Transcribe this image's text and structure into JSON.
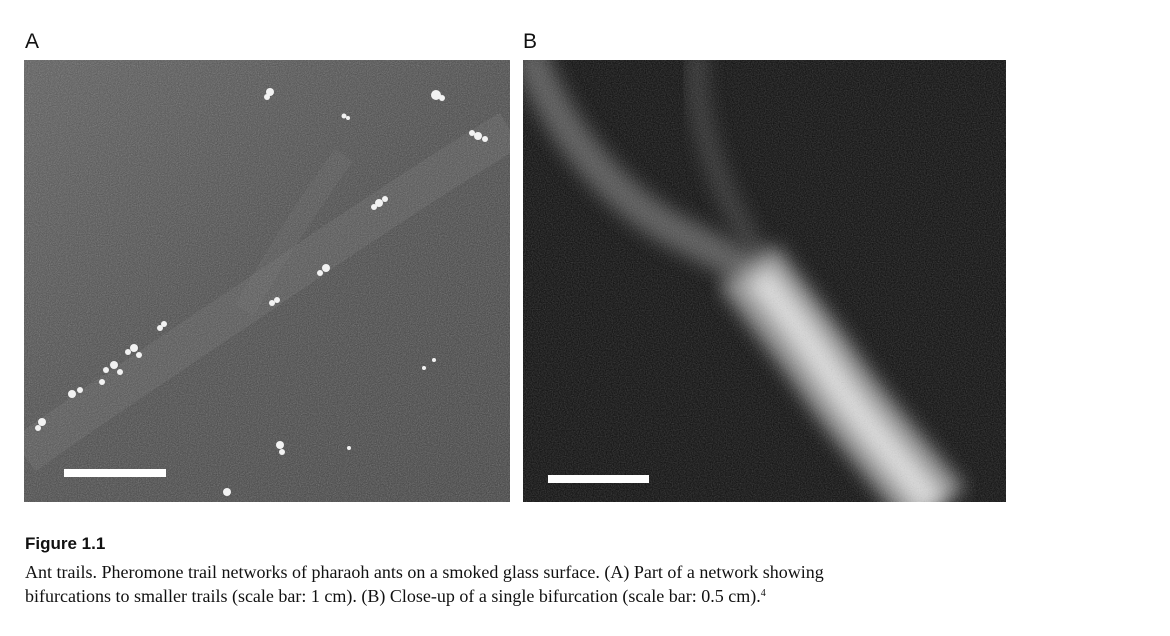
{
  "figure": {
    "panels": [
      {
        "letter": "A",
        "scale_bar": "1 cm"
      },
      {
        "letter": "B",
        "scale_bar": "0.5 cm"
      }
    ],
    "label": "Figure 1.1",
    "caption_lines": [
      "Ant trails. Pheromone trail networks of pharaoh ants on a smoked glass surface. (A) Part of a network showing",
      "bifurcations to smaller trails (scale bar: 1 cm). (B) Close-up of a single bifurcation (scale bar: 0.5 cm)."
    ],
    "reference_superscript": "4"
  }
}
